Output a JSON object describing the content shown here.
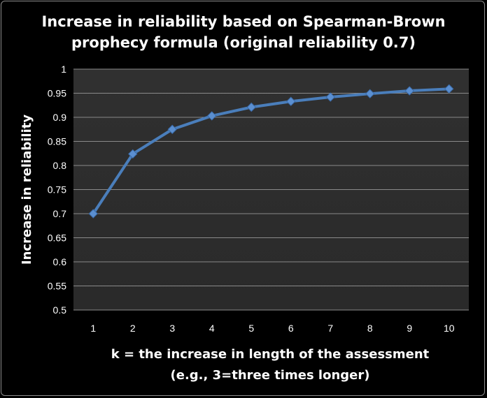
{
  "chart_data": {
    "type": "line",
    "title_lines": [
      "Increase in reliability based on Spearman-Brown",
      "prophecy formula (original reliability 0.7)"
    ],
    "xlabel_lines": [
      "k = the increase in length of the assessment",
      "(e.g., 3=three times longer)"
    ],
    "ylabel": "Increase in reliability",
    "categories": [
      "1",
      "2",
      "3",
      "4",
      "5",
      "6",
      "7",
      "8",
      "9",
      "10"
    ],
    "x": [
      1,
      2,
      3,
      4,
      5,
      6,
      7,
      8,
      9,
      10
    ],
    "series": [
      {
        "values": [
          0.7,
          0.824,
          0.875,
          0.903,
          0.921,
          0.933,
          0.942,
          0.949,
          0.955,
          0.959
        ],
        "color": "#4a7ebb"
      }
    ],
    "ylim": [
      0.5,
      1
    ],
    "yticks": [
      "0.5",
      "0.55",
      "0.6",
      "0.65",
      "0.7",
      "0.75",
      "0.8",
      "0.85",
      "0.9",
      "0.95",
      "1"
    ],
    "grid": true,
    "legend": "none",
    "colors": {
      "background": "#000000",
      "plot_area": "#2f2f2f",
      "gridline": "#8a8a8a",
      "text": "#ffffff"
    }
  }
}
